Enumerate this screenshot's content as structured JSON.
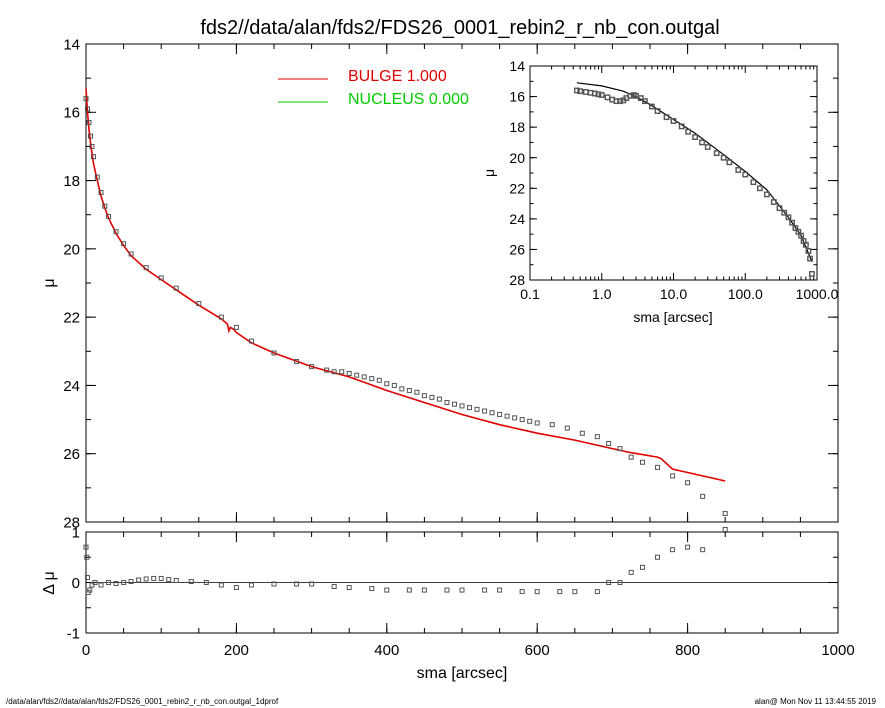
{
  "title": "fds2//data/alan/fds2/FDS26_0001_rebin2_r_nb_con.outgal",
  "footer": {
    "left": "/data/alan/fds2//data/alan/fds2/FDS26_0001_rebin2_r_nb_con.outgal_1dprof",
    "right": "alan@  Mon Nov 11 13:44:55 2019"
  },
  "colors": {
    "bulge": "#e00000",
    "nucleus": "#00cc00",
    "data": "#555555",
    "axis": "#000000"
  },
  "chart_data": [
    {
      "id": "main",
      "type": "scatter",
      "xlabel": "",
      "ylabel": "μ",
      "xlim": [
        0,
        1000
      ],
      "ylim": [
        28,
        14
      ],
      "x_ticks": [
        0,
        200,
        400,
        600,
        800,
        1000
      ],
      "y_ticks": [
        14,
        16,
        18,
        20,
        22,
        24,
        26,
        28
      ],
      "legend": {
        "position": "top-center",
        "entries": [
          {
            "label": "BULGE  1.000",
            "color": "#e00000"
          },
          {
            "label": "NUCLEUS  0.000",
            "color": "#00cc00"
          }
        ]
      },
      "series": [
        {
          "name": "BULGE  1.000",
          "kind": "line",
          "x": [
            0,
            2,
            4,
            6,
            8,
            10,
            15,
            20,
            25,
            30,
            40,
            50,
            60,
            80,
            100,
            120,
            150,
            180,
            188,
            190,
            192,
            196,
            200,
            220,
            250,
            300,
            350,
            400,
            450,
            500,
            550,
            600,
            650,
            700,
            720,
            760,
            765,
            780,
            800,
            820,
            850
          ],
          "y": [
            15.3,
            16.0,
            16.5,
            16.9,
            17.2,
            17.5,
            18.0,
            18.45,
            18.8,
            19.1,
            19.55,
            19.9,
            20.2,
            20.6,
            20.9,
            21.2,
            21.65,
            22.05,
            22.2,
            22.4,
            22.3,
            22.35,
            22.45,
            22.75,
            23.05,
            23.45,
            23.75,
            24.15,
            24.5,
            24.85,
            25.15,
            25.4,
            25.6,
            25.85,
            25.95,
            26.1,
            26.15,
            26.45,
            26.55,
            26.65,
            26.8
          ]
        },
        {
          "name": "data",
          "kind": "markers",
          "x": [
            0,
            2,
            4,
            6,
            8,
            10,
            15,
            20,
            25,
            30,
            40,
            50,
            60,
            80,
            100,
            120,
            150,
            180,
            200,
            220,
            250,
            280,
            300,
            320,
            330,
            340,
            350,
            360,
            370,
            380,
            390,
            400,
            410,
            420,
            430,
            440,
            450,
            460,
            470,
            480,
            490,
            500,
            510,
            520,
            530,
            540,
            550,
            560,
            570,
            580,
            590,
            600,
            620,
            640,
            660,
            680,
            695,
            710,
            725,
            740,
            760,
            780,
            800,
            820,
            850
          ],
          "y": [
            15.6,
            15.9,
            16.3,
            16.7,
            17.0,
            17.3,
            17.9,
            18.35,
            18.75,
            19.05,
            19.5,
            19.85,
            20.15,
            20.55,
            20.85,
            21.15,
            21.6,
            22.0,
            22.3,
            22.7,
            23.05,
            23.3,
            23.45,
            23.55,
            23.6,
            23.6,
            23.65,
            23.7,
            23.75,
            23.8,
            23.85,
            23.95,
            24.0,
            24.1,
            24.15,
            24.2,
            24.3,
            24.35,
            24.4,
            24.5,
            24.55,
            24.6,
            24.65,
            24.7,
            24.75,
            24.8,
            24.85,
            24.9,
            24.95,
            25.0,
            25.05,
            25.1,
            25.15,
            25.25,
            25.4,
            25.5,
            25.7,
            25.85,
            26.1,
            26.25,
            26.4,
            26.65,
            26.85,
            27.25,
            27.75
          ]
        },
        {
          "name": "NUCLEUS  0.000",
          "kind": "line",
          "x": [],
          "y": []
        }
      ]
    },
    {
      "id": "residual",
      "type": "scatter",
      "xlabel": "sma [arcsec]",
      "ylabel": "Δ μ",
      "xlim": [
        0,
        1000
      ],
      "ylim": [
        -1,
        1
      ],
      "x_ticks": [
        0,
        200,
        400,
        600,
        800,
        1000
      ],
      "y_ticks": [
        -1,
        0,
        1
      ],
      "zero_line": 0,
      "series": [
        {
          "name": "residual",
          "kind": "markers",
          "x": [
            0,
            1,
            2,
            3,
            5,
            8,
            12,
            20,
            30,
            40,
            50,
            60,
            70,
            80,
            90,
            100,
            110,
            120,
            140,
            160,
            180,
            200,
            220,
            250,
            280,
            300,
            330,
            350,
            380,
            400,
            430,
            450,
            480,
            500,
            530,
            550,
            580,
            600,
            630,
            650,
            680,
            695,
            710,
            725,
            740,
            760,
            780,
            800,
            820,
            850
          ],
          "y": [
            0.7,
            0.5,
            0.1,
            -0.2,
            -0.15,
            -0.05,
            0.0,
            -0.05,
            0.0,
            -0.02,
            0.0,
            0.02,
            0.05,
            0.07,
            0.08,
            0.08,
            0.06,
            0.04,
            0.02,
            0.0,
            -0.05,
            -0.1,
            -0.05,
            -0.03,
            -0.03,
            -0.03,
            -0.08,
            -0.1,
            -0.12,
            -0.15,
            -0.15,
            -0.15,
            -0.15,
            -0.15,
            -0.15,
            -0.15,
            -0.18,
            -0.18,
            -0.18,
            -0.18,
            -0.18,
            0.0,
            0.0,
            0.2,
            0.3,
            0.5,
            0.65,
            0.7,
            0.65,
            1.05
          ]
        }
      ]
    },
    {
      "id": "inset",
      "type": "scatter",
      "xscale": "log",
      "xlabel": "sma [arcsec]",
      "ylabel": "μ",
      "xlim": [
        0.1,
        1000
      ],
      "ylim": [
        28,
        14
      ],
      "x_ticks": [
        0.1,
        1,
        10,
        100,
        1000
      ],
      "x_tick_labels": [
        "0.1",
        "1.0",
        "10.0",
        "100.0",
        "1000.0"
      ],
      "y_ticks": [
        14,
        16,
        18,
        20,
        22,
        24,
        26,
        28
      ],
      "series": [
        {
          "name": "model",
          "kind": "line",
          "x": [
            0.45,
            1,
            2,
            3,
            5,
            10,
            20,
            50,
            100,
            200,
            400,
            600,
            850
          ],
          "y": [
            15.1,
            15.3,
            15.65,
            16.0,
            16.6,
            17.5,
            18.4,
            19.8,
            20.9,
            22.1,
            23.9,
            25.1,
            26.8
          ]
        },
        {
          "name": "data",
          "kind": "markers",
          "x": [
            0.45,
            0.5,
            0.6,
            0.7,
            0.8,
            0.9,
            1.0,
            1.2,
            1.4,
            1.6,
            1.8,
            2.0,
            2.2,
            2.5,
            2.8,
            3.0,
            3.5,
            4.0,
            5.0,
            6.0,
            8.0,
            10,
            13,
            16,
            20,
            25,
            30,
            40,
            50,
            60,
            80,
            100,
            130,
            160,
            200,
            250,
            300,
            350,
            400,
            450,
            500,
            550,
            600,
            650,
            700,
            760,
            800,
            850
          ],
          "y": [
            15.6,
            15.65,
            15.7,
            15.75,
            15.8,
            15.85,
            15.9,
            16.05,
            16.2,
            16.3,
            16.3,
            16.25,
            16.1,
            15.95,
            15.9,
            15.95,
            16.1,
            16.3,
            16.65,
            16.95,
            17.35,
            17.6,
            17.95,
            18.3,
            18.65,
            19.0,
            19.3,
            19.7,
            20.0,
            20.3,
            20.8,
            21.1,
            21.6,
            22.0,
            22.4,
            22.9,
            23.3,
            23.6,
            23.9,
            24.25,
            24.6,
            24.85,
            25.1,
            25.45,
            25.7,
            26.1,
            26.6,
            27.6
          ]
        }
      ]
    }
  ]
}
